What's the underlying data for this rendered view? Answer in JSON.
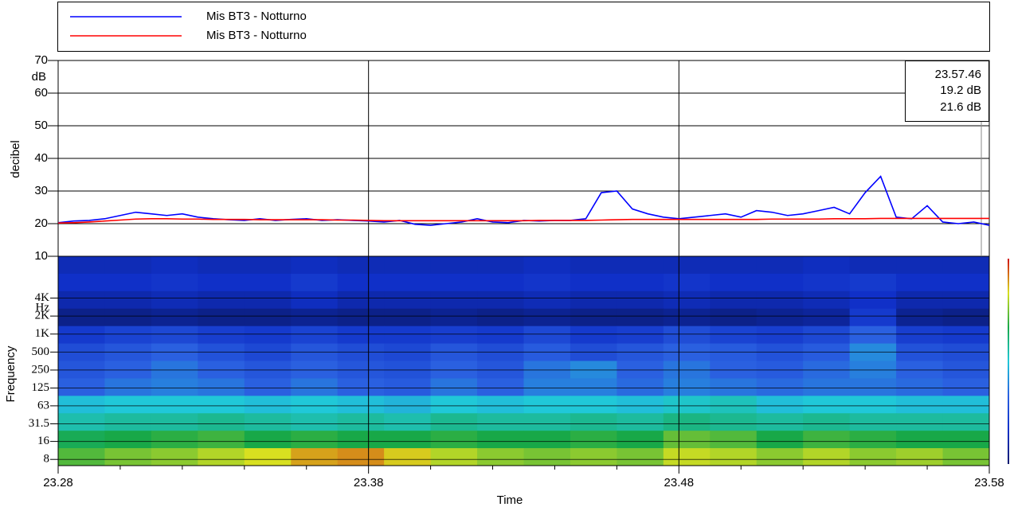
{
  "chart_data": [
    {
      "type": "line",
      "y_label": "decibel",
      "y_unit": "dB",
      "ylim": [
        10,
        70
      ],
      "yticks": [
        10,
        20,
        30,
        40,
        50,
        60,
        70
      ],
      "grid": true,
      "xlim": [
        23.28,
        23.58
      ],
      "x": [
        23.28,
        23.285,
        23.29,
        23.295,
        23.3,
        23.305,
        23.31,
        23.315,
        23.32,
        23.325,
        23.33,
        23.335,
        23.34,
        23.345,
        23.35,
        23.355,
        23.36,
        23.365,
        23.37,
        23.375,
        23.38,
        23.385,
        23.39,
        23.395,
        23.4,
        23.405,
        23.41,
        23.415,
        23.42,
        23.425,
        23.43,
        23.435,
        23.44,
        23.445,
        23.45,
        23.455,
        23.46,
        23.465,
        23.47,
        23.475,
        23.48,
        23.485,
        23.49,
        23.495,
        23.5,
        23.505,
        23.51,
        23.515,
        23.52,
        23.525,
        23.53,
        23.535,
        23.54,
        23.545,
        23.55,
        23.555,
        23.56,
        23.565,
        23.57,
        23.575,
        23.58
      ],
      "series": [
        {
          "name": "Mis BT3 - Notturno",
          "color": "#0000ff",
          "values": [
            20.3,
            20.8,
            21.0,
            21.5,
            22.5,
            23.5,
            23.0,
            22.5,
            23.0,
            22.0,
            21.5,
            21.2,
            21.0,
            21.5,
            21.0,
            21.3,
            21.5,
            21.0,
            21.2,
            21.0,
            20.8,
            20.5,
            21.0,
            19.8,
            19.5,
            20.0,
            20.5,
            21.5,
            20.5,
            20.3,
            21.0,
            20.8,
            21.0,
            21.0,
            21.5,
            29.5,
            30.0,
            24.5,
            23.0,
            22.0,
            21.5,
            22.0,
            22.5,
            23.0,
            22.0,
            24.0,
            23.5,
            22.5,
            23.0,
            24.0,
            25.0,
            23.0,
            29.5,
            34.5,
            22.0,
            21.5,
            25.5,
            20.5,
            20.0,
            20.5,
            19.5
          ]
        },
        {
          "name": "Mis BT3 - Notturno",
          "color": "#ff0000",
          "values": [
            20.2,
            20.3,
            20.5,
            20.8,
            21.1,
            21.4,
            21.5,
            21.5,
            21.4,
            21.4,
            21.3,
            21.3,
            21.3,
            21.2,
            21.2,
            21.2,
            21.2,
            21.2,
            21.1,
            21.1,
            21.0,
            20.9,
            20.9,
            20.9,
            20.9,
            20.9,
            20.9,
            20.9,
            20.9,
            20.9,
            20.9,
            21.0,
            21.0,
            21.0,
            21.0,
            21.1,
            21.2,
            21.3,
            21.3,
            21.3,
            21.3,
            21.3,
            21.3,
            21.3,
            21.3,
            21.3,
            21.4,
            21.4,
            21.4,
            21.4,
            21.5,
            21.5,
            21.5,
            21.6,
            21.6,
            21.6,
            21.6,
            21.6,
            21.6,
            21.6,
            21.6
          ]
        }
      ],
      "cursor": {
        "time": "23.57.46",
        "readouts": [
          "19.2 dB",
          "21.6 dB"
        ]
      }
    },
    {
      "type": "heatmap",
      "x_label": "Time",
      "y_label": "Frequency",
      "y_unit": "Hz",
      "log_y": true,
      "ylim": [
        6.3,
        20000
      ],
      "yticks": [
        {
          "value": 4000,
          "label": "4K"
        },
        {
          "value": 2000,
          "label": "2K"
        },
        {
          "value": 1000,
          "label": "1K"
        },
        500,
        250,
        125,
        63,
        31.5,
        16,
        8
      ],
      "xlim": [
        23.28,
        23.58
      ],
      "xticks": [
        23.28,
        23.38,
        23.48,
        23.58
      ],
      "x_minor_ticks": [
        23.3,
        23.32,
        23.34,
        23.36,
        23.4,
        23.42,
        23.44,
        23.46,
        23.5,
        23.52,
        23.54,
        23.56
      ],
      "colorscale": [
        "#0a1a6e",
        "#1030c8",
        "#2a60e0",
        "#20c8d8",
        "#18a848",
        "#d8e020",
        "#d01010"
      ],
      "zlim": [
        0,
        6
      ],
      "levels": [
        [
          0.8,
          0.8,
          0.9,
          0.8,
          0.8,
          0.9,
          0.8,
          0.8,
          0.8,
          0.8,
          0.9,
          0.8,
          0.8,
          0.8,
          0.8,
          0.8,
          0.9,
          0.8,
          0.8,
          0.8
        ],
        [
          1.0,
          1.0,
          1.1,
          1.0,
          1.0,
          1.2,
          1.0,
          1.0,
          1.0,
          1.0,
          1.1,
          1.0,
          1.0,
          1.1,
          1.0,
          1.0,
          1.1,
          1.2,
          1.0,
          1.0
        ],
        [
          0.7,
          0.7,
          0.8,
          0.7,
          0.7,
          0.9,
          0.7,
          0.7,
          0.7,
          0.7,
          0.8,
          0.7,
          0.7,
          0.8,
          0.7,
          0.7,
          0.8,
          1.0,
          0.7,
          0.7
        ],
        [
          0.3,
          0.3,
          0.4,
          0.3,
          0.3,
          0.4,
          0.3,
          0.3,
          0.4,
          0.3,
          0.4,
          0.3,
          0.3,
          0.4,
          0.3,
          0.4,
          0.5,
          1.2,
          0.4,
          0.3
        ],
        [
          1.2,
          1.4,
          1.5,
          1.3,
          1.2,
          1.4,
          1.2,
          1.2,
          1.3,
          1.2,
          1.5,
          1.2,
          1.3,
          1.6,
          1.4,
          1.3,
          1.5,
          2.0,
          1.3,
          1.2
        ],
        [
          1.6,
          1.8,
          2.0,
          1.7,
          1.5,
          1.8,
          1.6,
          1.5,
          1.8,
          1.6,
          1.9,
          1.6,
          1.8,
          2.0,
          1.9,
          1.7,
          1.9,
          2.4,
          1.7,
          1.6
        ],
        [
          1.8,
          2.0,
          2.2,
          2.0,
          1.8,
          2.0,
          1.8,
          1.7,
          2.0,
          1.8,
          2.2,
          2.4,
          2.0,
          2.2,
          2.0,
          1.9,
          2.1,
          2.3,
          2.0,
          1.8
        ],
        [
          2.0,
          2.2,
          2.3,
          2.2,
          2.0,
          2.2,
          2.0,
          1.9,
          2.2,
          2.0,
          2.3,
          2.3,
          2.1,
          2.3,
          2.2,
          2.1,
          2.2,
          2.2,
          2.1,
          2.0
        ],
        [
          2.9,
          3.0,
          3.0,
          3.0,
          2.9,
          3.0,
          2.9,
          2.8,
          3.0,
          2.9,
          3.0,
          3.0,
          2.9,
          3.1,
          3.2,
          2.9,
          3.0,
          3.0,
          2.9,
          2.9
        ],
        [
          3.3,
          3.4,
          3.4,
          3.5,
          3.4,
          3.3,
          3.4,
          3.3,
          3.5,
          3.4,
          3.4,
          3.5,
          3.4,
          3.6,
          3.5,
          3.4,
          3.5,
          3.4,
          3.4,
          3.4
        ],
        [
          3.9,
          4.0,
          4.1,
          4.2,
          4.0,
          4.1,
          4.0,
          4.0,
          4.1,
          4.0,
          4.0,
          4.1,
          4.0,
          4.4,
          4.3,
          4.0,
          4.2,
          4.1,
          4.0,
          4.0
        ],
        [
          4.3,
          4.5,
          4.6,
          4.8,
          5.0,
          5.3,
          5.4,
          5.1,
          4.8,
          4.6,
          4.5,
          4.6,
          4.5,
          4.9,
          4.8,
          4.6,
          4.8,
          4.6,
          4.7,
          4.5
        ]
      ]
    }
  ]
}
